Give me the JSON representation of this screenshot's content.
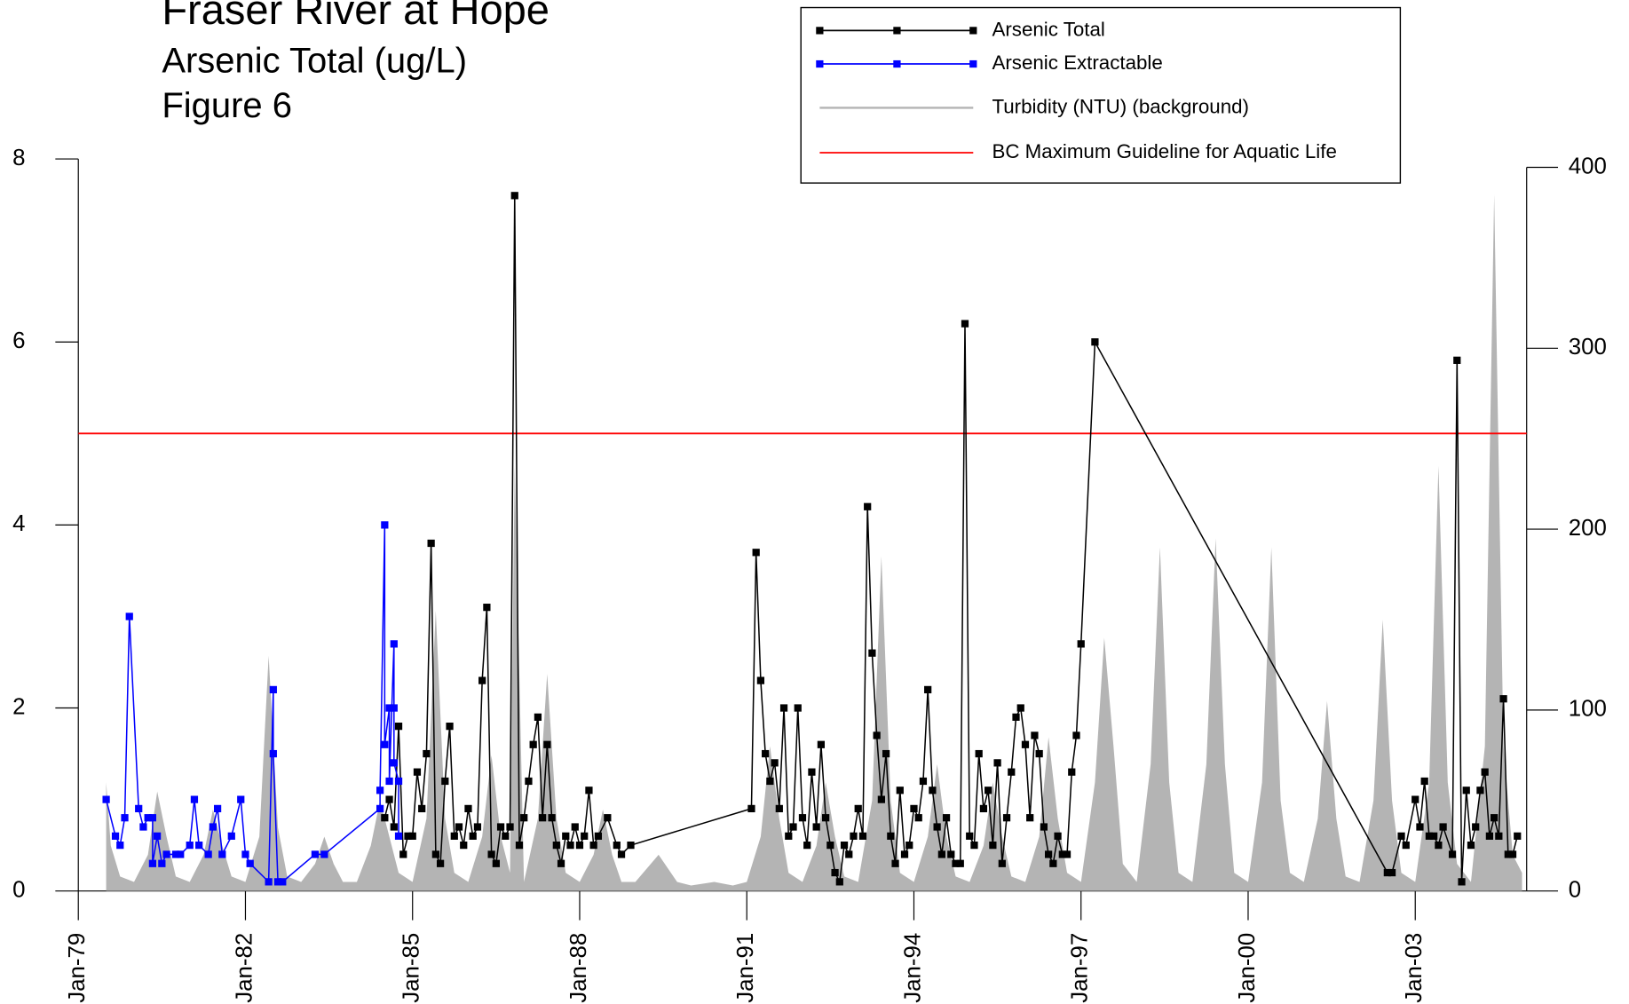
{
  "chart_data": {
    "type": "line",
    "title": "Fraser River at Hope",
    "subtitle": "Arsenic Total (ug/L)",
    "figure_label": "Figure 6",
    "xlim": [
      "1979-01",
      "2005-01"
    ],
    "xticks": [
      {
        "value": "1979-01",
        "label": "Jan-79"
      },
      {
        "value": "1982-01",
        "label": "Jan-82"
      },
      {
        "value": "1985-01",
        "label": "Jan-85"
      },
      {
        "value": "1988-01",
        "label": "Jan-88"
      },
      {
        "value": "1991-01",
        "label": "Jan-91"
      },
      {
        "value": "1994-01",
        "label": "Jan-94"
      },
      {
        "value": "1997-01",
        "label": "Jan-97"
      },
      {
        "value": "2000-01",
        "label": "Jan-00"
      },
      {
        "value": "2003-01",
        "label": "Jan-03"
      }
    ],
    "ylim": [
      0,
      8
    ],
    "yticks": [
      0,
      2,
      4,
      6,
      8
    ],
    "y2lim": [
      0,
      400
    ],
    "y2ticks": [
      0,
      100,
      200,
      300,
      400
    ],
    "legend": "top-right",
    "series": [
      {
        "name": "Arsenic Total",
        "color": "#000000",
        "kind": "line",
        "markers": true,
        "x": [
          "1984-07",
          "1984-08",
          "1984-09",
          "1984-10",
          "1984-11",
          "1984-12",
          "1985-01",
          "1985-02",
          "1985-03",
          "1985-04",
          "1985-05",
          "1985-06",
          "1985-07",
          "1985-08",
          "1985-09",
          "1985-10",
          "1985-11",
          "1985-12",
          "1986-01",
          "1986-02",
          "1986-03",
          "1986-04",
          "1986-05",
          "1986-06",
          "1986-07",
          "1986-08",
          "1986-09",
          "1986-10",
          "1986-11",
          "1986-12",
          "1987-01",
          "1987-02",
          "1987-03",
          "1987-04",
          "1987-05",
          "1987-06",
          "1987-07",
          "1987-08",
          "1987-09",
          "1987-10",
          "1987-11",
          "1987-12",
          "1988-01",
          "1988-02",
          "1988-03",
          "1988-04",
          "1988-05",
          "1988-07",
          "1988-09",
          "1988-10",
          "1988-12",
          "1991-02",
          "1991-03",
          "1991-04",
          "1991-05",
          "1991-06",
          "1991-07",
          "1991-08",
          "1991-09",
          "1991-10",
          "1991-11",
          "1991-12",
          "1992-01",
          "1992-02",
          "1992-03",
          "1992-04",
          "1992-05",
          "1992-06",
          "1992-07",
          "1992-08",
          "1992-09",
          "1992-10",
          "1992-11",
          "1992-12",
          "1993-01",
          "1993-02",
          "1993-03",
          "1993-04",
          "1993-05",
          "1993-06",
          "1993-07",
          "1993-08",
          "1993-09",
          "1993-10",
          "1993-11",
          "1993-12",
          "1994-01",
          "1994-02",
          "1994-03",
          "1994-04",
          "1994-05",
          "1994-06",
          "1994-07",
          "1994-08",
          "1994-09",
          "1994-10",
          "1994-11",
          "1994-12",
          "1995-01",
          "1995-02",
          "1995-03",
          "1995-04",
          "1995-05",
          "1995-06",
          "1995-07",
          "1995-08",
          "1995-09",
          "1995-10",
          "1995-11",
          "1995-12",
          "1996-01",
          "1996-02",
          "1996-03",
          "1996-04",
          "1996-05",
          "1996-06",
          "1996-07",
          "1996-08",
          "1996-09",
          "1996-10",
          "1996-11",
          "1996-12",
          "1997-01",
          "1997-04",
          "2002-07",
          "2002-08",
          "2002-10",
          "2002-11",
          "2003-01",
          "2003-02",
          "2003-03",
          "2003-04",
          "2003-05",
          "2003-06",
          "2003-07",
          "2003-09",
          "2003-10",
          "2003-11",
          "2003-12",
          "2004-01",
          "2004-02",
          "2004-03",
          "2004-04",
          "2004-05",
          "2004-06",
          "2004-07",
          "2004-08",
          "2004-09",
          "2004-10",
          "2004-11"
        ],
        "values": [
          0.8,
          1.0,
          0.7,
          1.8,
          0.4,
          0.6,
          0.6,
          1.3,
          0.9,
          1.5,
          3.8,
          0.4,
          0.3,
          1.2,
          1.8,
          0.6,
          0.7,
          0.5,
          0.9,
          0.6,
          0.7,
          2.3,
          3.1,
          0.4,
          0.3,
          0.7,
          0.6,
          0.7,
          7.6,
          0.5,
          0.8,
          1.2,
          1.6,
          1.9,
          0.8,
          1.6,
          0.8,
          0.5,
          0.3,
          0.6,
          0.5,
          0.7,
          0.5,
          0.6,
          1.1,
          0.5,
          0.6,
          0.8,
          0.5,
          0.4,
          0.5,
          0.9,
          3.7,
          2.3,
          1.5,
          1.2,
          1.4,
          0.9,
          2.0,
          0.6,
          0.7,
          2.0,
          0.8,
          0.5,
          1.3,
          0.7,
          1.6,
          0.8,
          0.5,
          0.2,
          0.1,
          0.5,
          0.4,
          0.6,
          0.9,
          0.6,
          4.2,
          2.6,
          1.7,
          1.0,
          1.5,
          0.6,
          0.3,
          1.1,
          0.4,
          0.5,
          0.9,
          0.8,
          1.2,
          2.2,
          1.1,
          0.7,
          0.4,
          0.8,
          0.4,
          0.3,
          0.3,
          6.2,
          0.6,
          0.5,
          1.5,
          0.9,
          1.1,
          0.5,
          1.4,
          0.3,
          0.8,
          1.3,
          1.9,
          2.0,
          1.6,
          0.8,
          1.7,
          1.5,
          0.7,
          0.4,
          0.3,
          0.6,
          0.4,
          0.4,
          1.3,
          1.7,
          2.7,
          6.0,
          0.2,
          0.2,
          0.6,
          0.5,
          1.0,
          0.7,
          1.2,
          0.6,
          0.6,
          0.5,
          0.7,
          0.4,
          5.8,
          0.1,
          1.1,
          0.5,
          0.7,
          1.1,
          1.3,
          0.6,
          0.8,
          0.6,
          2.1,
          0.4,
          0.4,
          0.6
        ]
      },
      {
        "name": "Arsenic Extractable",
        "color": "#0000ff",
        "kind": "line",
        "markers": true,
        "x": [
          "1979-07",
          "1979-09",
          "1979-10",
          "1979-11",
          "1979-12",
          "1980-02",
          "1980-03",
          "1980-04",
          "1980-05",
          "1980-05",
          "1980-06",
          "1980-07",
          "1980-08",
          "1980-10",
          "1980-11",
          "1981-01",
          "1981-02",
          "1981-03",
          "1981-05",
          "1981-06",
          "1981-07",
          "1981-08",
          "1981-10",
          "1981-12",
          "1982-01",
          "1982-02",
          "1982-06",
          "1982-07",
          "1982-07",
          "1982-08",
          "1982-09",
          "1983-04",
          "1983-06",
          "1984-06",
          "1984-06",
          "1984-07",
          "1984-07",
          "1984-08",
          "1984-08",
          "1984-09",
          "1984-09",
          "1984-09",
          "1984-10",
          "1984-10"
        ],
        "values": [
          1.0,
          0.6,
          0.5,
          0.8,
          3.0,
          0.9,
          0.7,
          0.8,
          0.8,
          0.3,
          0.6,
          0.3,
          0.4,
          0.4,
          0.4,
          0.5,
          1.0,
          0.5,
          0.4,
          0.7,
          0.9,
          0.4,
          0.6,
          1.0,
          0.4,
          0.3,
          0.1,
          2.2,
          1.5,
          0.1,
          0.1,
          0.4,
          0.4,
          0.9,
          1.1,
          4.0,
          1.6,
          2.0,
          1.2,
          2.7,
          2.0,
          1.4,
          1.2,
          0.6
        ]
      },
      {
        "name": "Turbidity (NTU) (background)",
        "color": "#b4b4b4",
        "kind": "area",
        "axis": "y2",
        "x": [
          "1979-07",
          "1979-08",
          "1979-10",
          "1980-01",
          "1980-04",
          "1980-06",
          "1980-08",
          "1980-10",
          "1981-01",
          "1981-04",
          "1981-06",
          "1981-08",
          "1981-10",
          "1982-01",
          "1982-04",
          "1982-06",
          "1982-08",
          "1982-10",
          "1983-01",
          "1983-04",
          "1983-06",
          "1983-08",
          "1983-10",
          "1984-01",
          "1984-04",
          "1984-06",
          "1984-08",
          "1984-10",
          "1985-01",
          "1985-04",
          "1985-06",
          "1985-08",
          "1985-10",
          "1986-01",
          "1986-04",
          "1986-06",
          "1986-08",
          "1986-10",
          "1986-11",
          "1987-01",
          "1987-04",
          "1987-06",
          "1987-08",
          "1987-10",
          "1988-01",
          "1988-04",
          "1988-06",
          "1988-08",
          "1988-10",
          "1989-01",
          "1989-06",
          "1989-10",
          "1990-01",
          "1990-06",
          "1990-10",
          "1991-01",
          "1991-04",
          "1991-06",
          "1991-08",
          "1991-10",
          "1992-01",
          "1992-04",
          "1992-06",
          "1992-08",
          "1992-10",
          "1993-01",
          "1993-04",
          "1993-06",
          "1993-08",
          "1993-10",
          "1994-01",
          "1994-04",
          "1994-06",
          "1994-08",
          "1994-10",
          "1995-01",
          "1995-04",
          "1995-06",
          "1995-08",
          "1995-10",
          "1996-01",
          "1996-04",
          "1996-06",
          "1996-08",
          "1996-10",
          "1997-01",
          "1997-04",
          "1997-06",
          "1997-08",
          "1997-10",
          "1998-01",
          "1998-04",
          "1998-06",
          "1998-08",
          "1998-10",
          "1999-01",
          "1999-04",
          "1999-06",
          "1999-08",
          "1999-10",
          "2000-01",
          "2000-04",
          "2000-06",
          "2000-08",
          "2000-10",
          "2001-01",
          "2001-04",
          "2001-06",
          "2001-08",
          "2001-10",
          "2002-01",
          "2002-04",
          "2002-06",
          "2002-08",
          "2002-10",
          "2003-01",
          "2003-04",
          "2003-06",
          "2003-08",
          "2003-10",
          "2004-01",
          "2004-04",
          "2004-06",
          "2004-08",
          "2004-10",
          "2004-12"
        ],
        "values": [
          60,
          25,
          8,
          5,
          20,
          55,
          30,
          8,
          5,
          20,
          45,
          25,
          8,
          5,
          30,
          130,
          35,
          8,
          5,
          15,
          30,
          15,
          5,
          5,
          25,
          50,
          30,
          10,
          5,
          40,
          155,
          40,
          10,
          5,
          30,
          75,
          30,
          10,
          235,
          5,
          40,
          120,
          40,
          10,
          5,
          20,
          45,
          20,
          5,
          5,
          20,
          5,
          3,
          5,
          3,
          5,
          30,
          80,
          40,
          10,
          5,
          25,
          60,
          30,
          8,
          5,
          50,
          185,
          50,
          10,
          5,
          30,
          70,
          30,
          8,
          5,
          25,
          60,
          30,
          8,
          5,
          30,
          85,
          40,
          10,
          5,
          60,
          140,
          80,
          15,
          5,
          70,
          190,
          60,
          10,
          5,
          70,
          195,
          70,
          10,
          5,
          60,
          190,
          50,
          10,
          5,
          40,
          105,
          40,
          8,
          5,
          50,
          150,
          50,
          10,
          5,
          60,
          235,
          60,
          15,
          5,
          80,
          385,
          80,
          20,
          10
        ]
      },
      {
        "name": "BC Maximum Guideline for Aquatic Life",
        "color": "#ff0000",
        "kind": "hline",
        "value": 5
      }
    ]
  }
}
